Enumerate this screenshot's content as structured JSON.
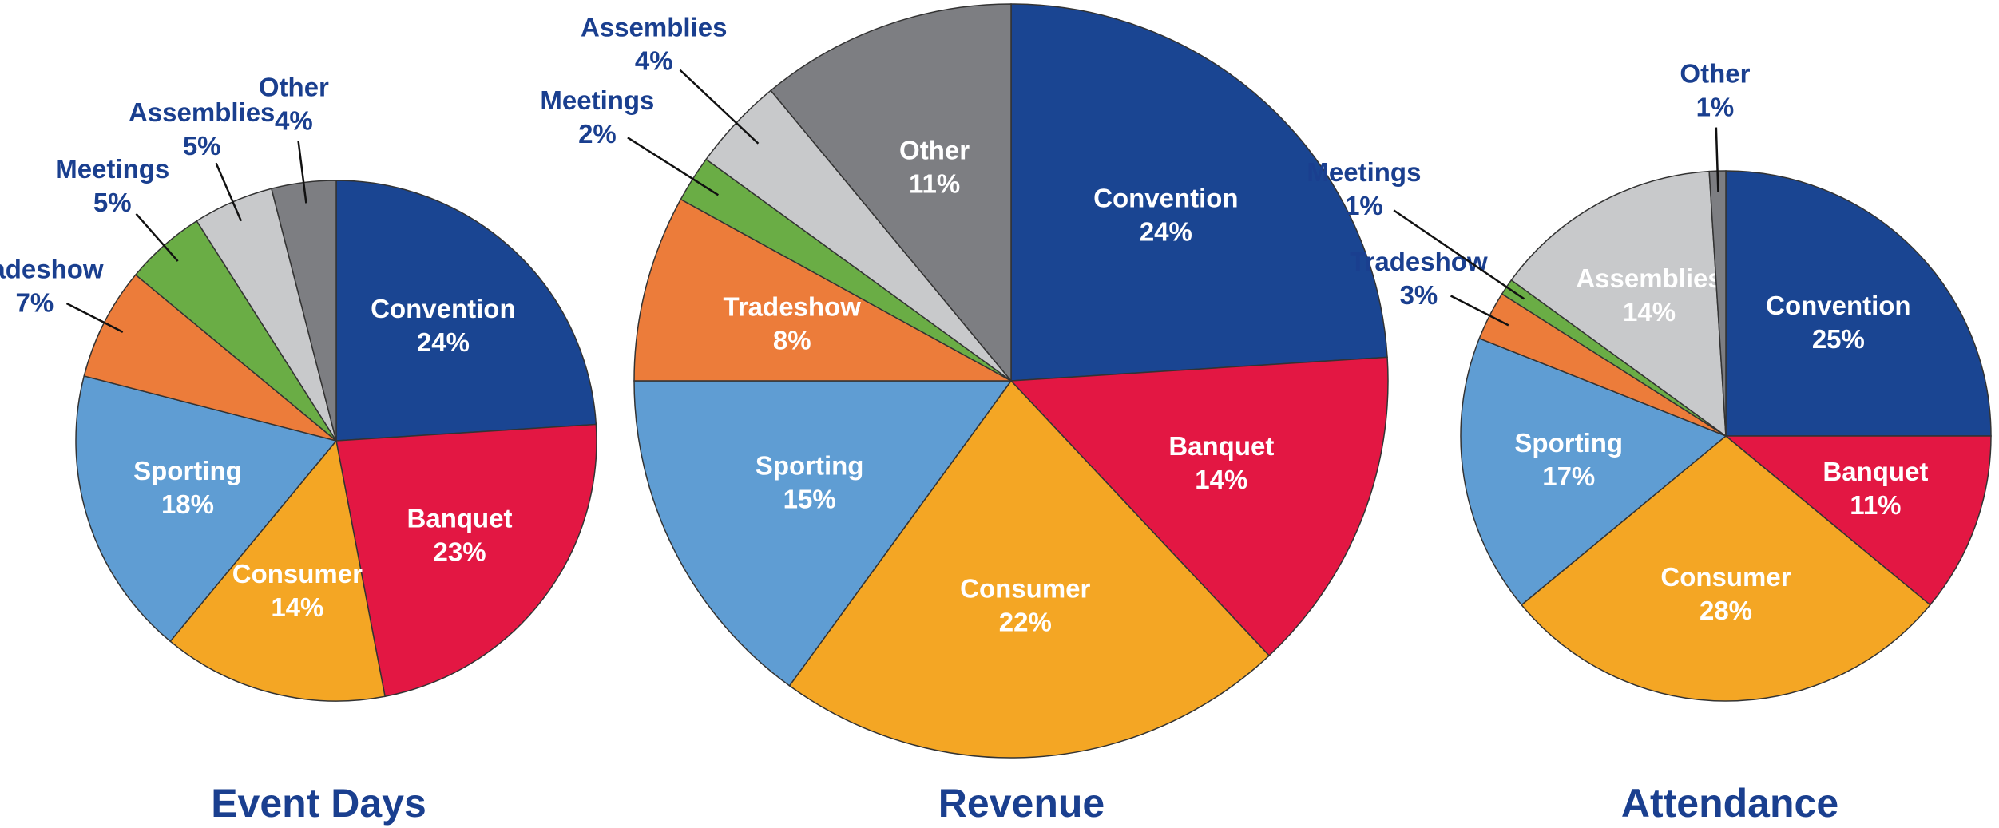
{
  "chart_data": [
    {
      "type": "pie",
      "title": "Event Days",
      "categories": [
        "Convention",
        "Banquet",
        "Consumer",
        "Sporting",
        "Tradeshow",
        "Meetings",
        "Assemblies",
        "Other"
      ],
      "values": [
        24,
        23,
        14,
        18,
        7,
        5,
        5,
        4
      ],
      "value_labels": [
        "24%",
        "23%",
        "14%",
        "18%",
        "7%",
        "5%",
        "5%",
        "4%"
      ],
      "colors": [
        "#1a4592",
        "#e31743",
        "#f4a624",
        "#5f9dd3",
        "#ec7c3a",
        "#6aad45",
        "#c8c9cb",
        "#7d7e82"
      ]
    },
    {
      "type": "pie",
      "title": "Revenue",
      "categories": [
        "Convention",
        "Banquet",
        "Consumer",
        "Sporting",
        "Tradeshow",
        "Meetings",
        "Assemblies",
        "Other"
      ],
      "values": [
        24,
        14,
        22,
        15,
        8,
        2,
        4,
        11
      ],
      "value_labels": [
        "24%",
        "14%",
        "22%",
        "15%",
        "8%",
        "2%",
        "4%",
        "11%"
      ],
      "colors": [
        "#1a4592",
        "#e31743",
        "#f4a624",
        "#5f9dd3",
        "#ec7c3a",
        "#6aad45",
        "#c8c9cb",
        "#7d7e82"
      ]
    },
    {
      "type": "pie",
      "title": "Attendance",
      "categories": [
        "Convention",
        "Banquet",
        "Consumer",
        "Sporting",
        "Tradeshow",
        "Meetings",
        "Assemblies",
        "Other"
      ],
      "values": [
        25,
        11,
        28,
        17,
        3,
        1,
        14,
        1
      ],
      "value_labels": [
        "25%",
        "11%",
        "28%",
        "17%",
        "3%",
        "1%",
        "14%",
        "1%"
      ],
      "colors": [
        "#1a4592",
        "#e31743",
        "#f4a624",
        "#5f9dd3",
        "#ec7c3a",
        "#6aad45",
        "#c8c9cb",
        "#7d7e82"
      ]
    }
  ]
}
